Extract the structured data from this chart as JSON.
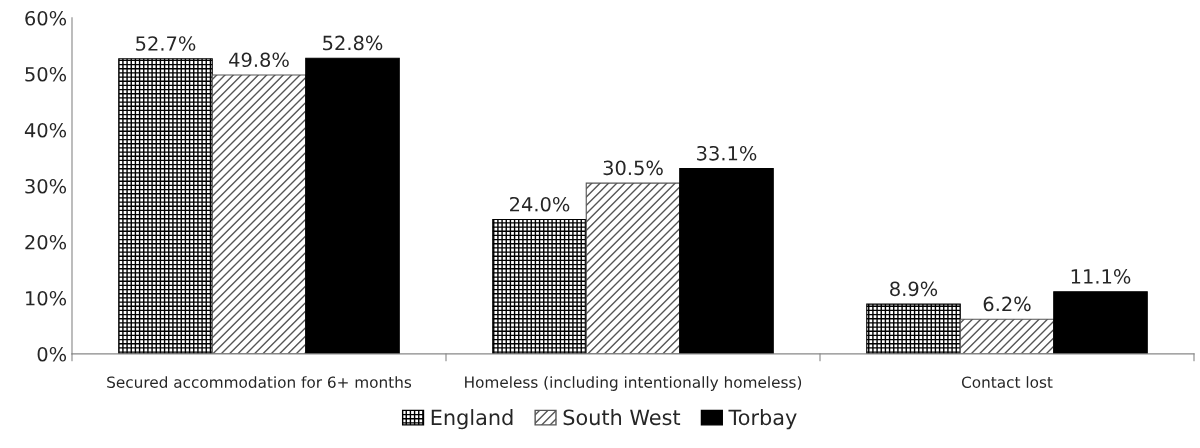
{
  "chart_data": {
    "type": "bar",
    "categories": [
      "Secured accommodation for 6+ months",
      "Homeless (including intentionally homeless)",
      "Contact lost"
    ],
    "series": [
      {
        "name": "England",
        "color": "#000000",
        "values": [
          52.7,
          24.0,
          8.9
        ],
        "value_labels": [
          "52.7%",
          "24.0%",
          "8.9%"
        ]
      },
      {
        "name": "South West",
        "color": "#555555",
        "values": [
          49.8,
          30.5,
          6.2
        ],
        "value_labels": [
          "49.8%",
          "30.5%",
          "6.2%"
        ]
      },
      {
        "name": "Torbay",
        "color": "#000000",
        "values": [
          52.8,
          33.1,
          11.1
        ],
        "value_labels": [
          "52.8%",
          "33.1%",
          "11.1%"
        ]
      }
    ],
    "ylim": [
      0,
      60
    ],
    "yticks": [
      {
        "value": 0,
        "label": "0%"
      },
      {
        "value": 10,
        "label": "10%"
      },
      {
        "value": 20,
        "label": "20%"
      },
      {
        "value": 30,
        "label": "30%"
      },
      {
        "value": 40,
        "label": "40%"
      },
      {
        "value": 50,
        "label": "50%"
      },
      {
        "value": 60,
        "label": "60%"
      }
    ],
    "grid": false,
    "legend": "bottom"
  }
}
